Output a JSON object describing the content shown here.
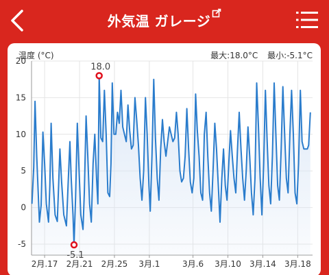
{
  "header": {
    "title": "外気温 ガレージ",
    "back_icon": "chevron-left-icon",
    "edit_icon": "external-edit-icon",
    "menu_icon": "list-menu-icon",
    "background": "#d9261e"
  },
  "card": {
    "ylabel": "温度 (°C)",
    "max_label": "最大:18.0°C",
    "min_label": "最小:-5.1°C"
  },
  "chart_data": {
    "type": "line",
    "ylabel": "温度 (°C)",
    "ylim": [
      -6.5,
      20
    ],
    "yticks": [
      "20",
      "15",
      "10",
      "5",
      "0",
      "-5"
    ],
    "ytick_values": [
      20,
      15,
      10,
      5,
      0,
      -5
    ],
    "xtick_labels": [
      "2月.17",
      "2月.21",
      "2月.25",
      "3月.1",
      "3月.6",
      "3月.10",
      "3月.14",
      "3月.18"
    ],
    "xtick_days": [
      0,
      4,
      8,
      12,
      17,
      21,
      25,
      29
    ],
    "xlim": [
      -1.5,
      30.7
    ],
    "grid": true,
    "line_color": "#2a7ccc",
    "fill_color": "#dbe7f6",
    "marker_color": "#e0101c",
    "annotations": [
      {
        "label": "18.0",
        "day": 6.25,
        "value": 18.0
      },
      {
        "label": "-5.1",
        "day": 3.37,
        "value": -5.1
      }
    ],
    "series": [
      {
        "values": [
          [
            -1.45,
            0.5
          ],
          [
            -1.25,
            5.5
          ],
          [
            -1.1,
            14.5
          ],
          [
            -0.9,
            7.0
          ],
          [
            -0.6,
            -2.0
          ],
          [
            -0.4,
            0.3
          ],
          [
            -0.2,
            10.3
          ],
          [
            0.0,
            6.0
          ],
          [
            0.2,
            0.5
          ],
          [
            0.45,
            -2.0
          ],
          [
            0.6,
            3.0
          ],
          [
            0.75,
            11.5
          ],
          [
            0.95,
            4.0
          ],
          [
            1.2,
            -1.0
          ],
          [
            1.45,
            -1.9
          ],
          [
            1.6,
            3.0
          ],
          [
            1.75,
            8.0
          ],
          [
            1.95,
            3.5
          ],
          [
            2.2,
            -1.0
          ],
          [
            2.5,
            -2.5
          ],
          [
            2.7,
            3.5
          ],
          [
            2.9,
            9.0
          ],
          [
            3.05,
            4.0
          ],
          [
            3.25,
            -1.0
          ],
          [
            3.37,
            -5.1
          ],
          [
            3.55,
            1.5
          ],
          [
            3.75,
            11.5
          ],
          [
            3.95,
            5.0
          ],
          [
            4.15,
            -1.0
          ],
          [
            4.4,
            -3.0
          ],
          [
            4.55,
            2.0
          ],
          [
            4.75,
            12.5
          ],
          [
            4.95,
            7.0
          ],
          [
            5.15,
            0.5
          ],
          [
            5.35,
            -2.0
          ],
          [
            5.55,
            6.0
          ],
          [
            5.75,
            10.0
          ],
          [
            5.95,
            4.0
          ],
          [
            6.1,
            0.5
          ],
          [
            6.25,
            18.0
          ],
          [
            6.45,
            9.5
          ],
          [
            6.65,
            9.0
          ],
          [
            6.85,
            16.0
          ],
          [
            7.05,
            10.0
          ],
          [
            7.25,
            2.0
          ],
          [
            7.45,
            1.5
          ],
          [
            7.6,
            6.0
          ],
          [
            7.75,
            17.0
          ],
          [
            7.95,
            10.0
          ],
          [
            8.15,
            10.0
          ],
          [
            8.35,
            13.0
          ],
          [
            8.55,
            11.5
          ],
          [
            8.75,
            16.0
          ],
          [
            8.95,
            11.0
          ],
          [
            9.15,
            10.0
          ],
          [
            9.35,
            9.0
          ],
          [
            9.55,
            14.0
          ],
          [
            9.75,
            10.5
          ],
          [
            9.95,
            8.0
          ],
          [
            10.15,
            8.5
          ],
          [
            10.35,
            15.0
          ],
          [
            10.55,
            12.0
          ],
          [
            10.75,
            8.5
          ],
          [
            10.95,
            4.0
          ],
          [
            11.15,
            1.0
          ],
          [
            11.35,
            5.0
          ],
          [
            11.55,
            15.0
          ],
          [
            11.75,
            10.0
          ],
          [
            11.95,
            3.0
          ],
          [
            12.1,
            -0.5
          ],
          [
            12.3,
            7.0
          ],
          [
            12.5,
            17.5
          ],
          [
            12.7,
            9.5
          ],
          [
            12.9,
            4.0
          ],
          [
            13.1,
            1.0
          ],
          [
            13.3,
            8.0
          ],
          [
            13.5,
            12.0
          ],
          [
            13.7,
            9.0
          ],
          [
            13.9,
            7.0
          ],
          [
            14.1,
            9.0
          ],
          [
            14.3,
            11.0
          ],
          [
            14.5,
            10.0
          ],
          [
            14.7,
            9.0
          ],
          [
            14.9,
            9.5
          ],
          [
            15.1,
            13.0
          ],
          [
            15.3,
            10.0
          ],
          [
            15.5,
            5.0
          ],
          [
            15.7,
            3.5
          ],
          [
            15.9,
            4.0
          ],
          [
            16.1,
            7.0
          ],
          [
            16.3,
            13.5
          ],
          [
            16.5,
            8.0
          ],
          [
            16.7,
            3.5
          ],
          [
            16.9,
            2.0
          ],
          [
            17.1,
            4.0
          ],
          [
            17.3,
            15.5
          ],
          [
            17.5,
            10.5
          ],
          [
            17.7,
            7.0
          ],
          [
            17.9,
            2.0
          ],
          [
            18.1,
            1.0
          ],
          [
            18.3,
            10.0
          ],
          [
            18.5,
            13.0
          ],
          [
            18.7,
            7.0
          ],
          [
            18.9,
            2.0
          ],
          [
            19.1,
            -0.5
          ],
          [
            19.3,
            5.0
          ],
          [
            19.5,
            11.5
          ],
          [
            19.7,
            8.0
          ],
          [
            19.9,
            3.0
          ],
          [
            20.1,
            -2.0
          ],
          [
            20.3,
            4.0
          ],
          [
            20.5,
            8.0
          ],
          [
            20.7,
            3.0
          ],
          [
            20.9,
            1.0
          ],
          [
            21.1,
            6.0
          ],
          [
            21.3,
            10.5
          ],
          [
            21.5,
            7.0
          ],
          [
            21.7,
            4.0
          ],
          [
            21.9,
            2.0
          ],
          [
            22.1,
            8.0
          ],
          [
            22.3,
            13.0
          ],
          [
            22.5,
            8.0
          ],
          [
            22.7,
            4.0
          ],
          [
            22.9,
            1.0
          ],
          [
            23.1,
            5.0
          ],
          [
            23.3,
            11.0
          ],
          [
            23.5,
            7.0
          ],
          [
            23.7,
            2.0
          ],
          [
            23.9,
            -1.0
          ],
          [
            24.1,
            4.0
          ],
          [
            24.3,
            17.0
          ],
          [
            24.5,
            11.0
          ],
          [
            24.7,
            4.0
          ],
          [
            24.9,
            -1.0
          ],
          [
            25.1,
            6.0
          ],
          [
            25.3,
            16.0
          ],
          [
            25.5,
            9.0
          ],
          [
            25.7,
            3.0
          ],
          [
            25.9,
            0.5
          ],
          [
            26.1,
            7.0
          ],
          [
            26.3,
            17.0
          ],
          [
            26.5,
            10.0
          ],
          [
            26.7,
            3.0
          ],
          [
            26.9,
            1.0
          ],
          [
            27.1,
            8.0
          ],
          [
            27.3,
            16.5
          ],
          [
            27.5,
            10.0
          ],
          [
            27.7,
            4.0
          ],
          [
            27.9,
            2.0
          ],
          [
            28.1,
            10.0
          ],
          [
            28.3,
            16.0
          ],
          [
            28.5,
            10.0
          ],
          [
            28.7,
            2.0
          ],
          [
            28.9,
            0.5
          ],
          [
            29.1,
            6.0
          ],
          [
            29.3,
            16.0
          ],
          [
            29.5,
            9.0
          ],
          [
            29.7,
            8.0
          ],
          [
            29.9,
            8.0
          ],
          [
            30.1,
            8.0
          ],
          [
            30.25,
            8.5
          ],
          [
            30.45,
            13.0
          ]
        ]
      }
    ]
  }
}
